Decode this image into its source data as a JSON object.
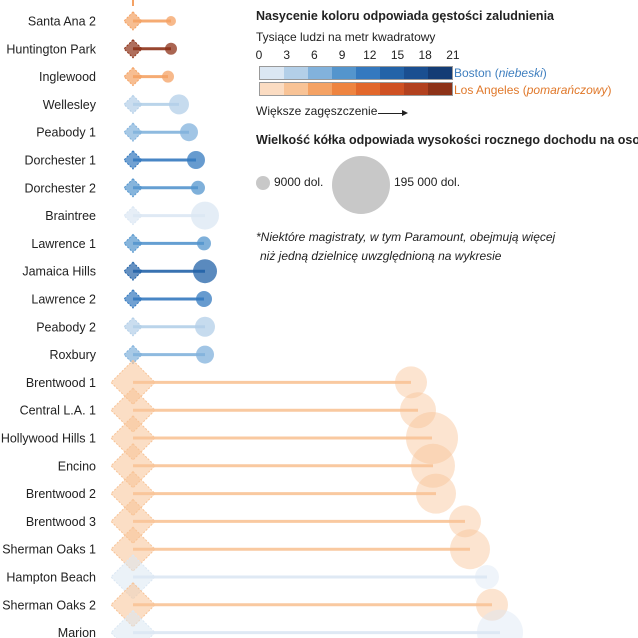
{
  "legend": {
    "density_title": "Nasycenie koloru odpowiada gęstości zaludnienia",
    "density_unit": "Tysiące ludzi na metr kwadratowy",
    "ticks": [
      "0",
      "3",
      "6",
      "9",
      "12",
      "15",
      "18",
      "21"
    ],
    "boston_city": "Boston",
    "boston_color_note": "niebeski",
    "la_city": "Los Angeles",
    "la_color_note": "pomarańczowy",
    "density_arrow_label": "Większe zagęszczenie",
    "size_title": "Wielkość kółka odpowiada wysokości rocznego dochodu na osobę",
    "size_min_label": "9000 dol.",
    "size_max_label": "195 000 dol.",
    "footnote_line1": "*Niektóre magistraty, w tym Paramount, obejmują więcej",
    "footnote_line2": "niż jedną dzielnicę uwzględnioną na wykresie",
    "boston_scale": [
      "#dbe7f3",
      "#b3cfe8",
      "#82b2dc",
      "#5495cd",
      "#3479bf",
      "#2363a8",
      "#1a4f91",
      "#143c75"
    ],
    "la_scale": [
      "#fbdcc2",
      "#f8c396",
      "#f4a264",
      "#ee8440",
      "#e2672b",
      "#cf5123",
      "#b2411f",
      "#8d3218"
    ]
  },
  "chart_data": {
    "type": "dumbbell",
    "title": "",
    "rows": [
      {
        "name": "Santa Ana 2",
        "city": "LA",
        "density_level": 2
      },
      {
        "name": "Huntington Park",
        "city": "LA",
        "density_level": 7
      },
      {
        "name": "Inglewood",
        "city": "LA",
        "density_level": 2
      },
      {
        "name": "Wellesley",
        "city": "Boston",
        "density_level": 1
      },
      {
        "name": "Peabody 1",
        "city": "Boston",
        "density_level": 2
      },
      {
        "name": "Dorchester 1",
        "city": "Boston",
        "density_level": 4
      },
      {
        "name": "Dorchester 2",
        "city": "Boston",
        "density_level": 3
      },
      {
        "name": "Braintree",
        "city": "Boston",
        "density_level": 0
      },
      {
        "name": "Lawrence 1",
        "city": "Boston",
        "density_level": 3
      },
      {
        "name": "Jamaica Hills",
        "city": "Boston",
        "density_level": 5
      },
      {
        "name": "Lawrence 2",
        "city": "Boston",
        "density_level": 4
      },
      {
        "name": "Peabody 2",
        "city": "Boston",
        "density_level": 1
      },
      {
        "name": "Roxbury",
        "city": "Boston",
        "density_level": 2
      },
      {
        "name": "Brentwood 1",
        "city": "LA",
        "density_level": 1
      },
      {
        "name": "Central L.A. 1",
        "city": "LA",
        "density_level": 1
      },
      {
        "name": "Hollywood Hills 1",
        "city": "LA",
        "density_level": 1
      },
      {
        "name": "Encino",
        "city": "LA",
        "density_level": 1
      },
      {
        "name": "Brentwood 2",
        "city": "LA",
        "density_level": 1
      },
      {
        "name": "Brentwood 3",
        "city": "LA",
        "density_level": 1
      },
      {
        "name": "Sherman Oaks 1",
        "city": "LA",
        "density_level": 1
      },
      {
        "name": "Hampton Beach",
        "city": "Boston",
        "density_level": 0
      },
      {
        "name": "Sherman Oaks 2",
        "city": "LA",
        "density_level": 1
      },
      {
        "name": "Marion",
        "city": "Boston",
        "density_level": 0
      }
    ]
  }
}
